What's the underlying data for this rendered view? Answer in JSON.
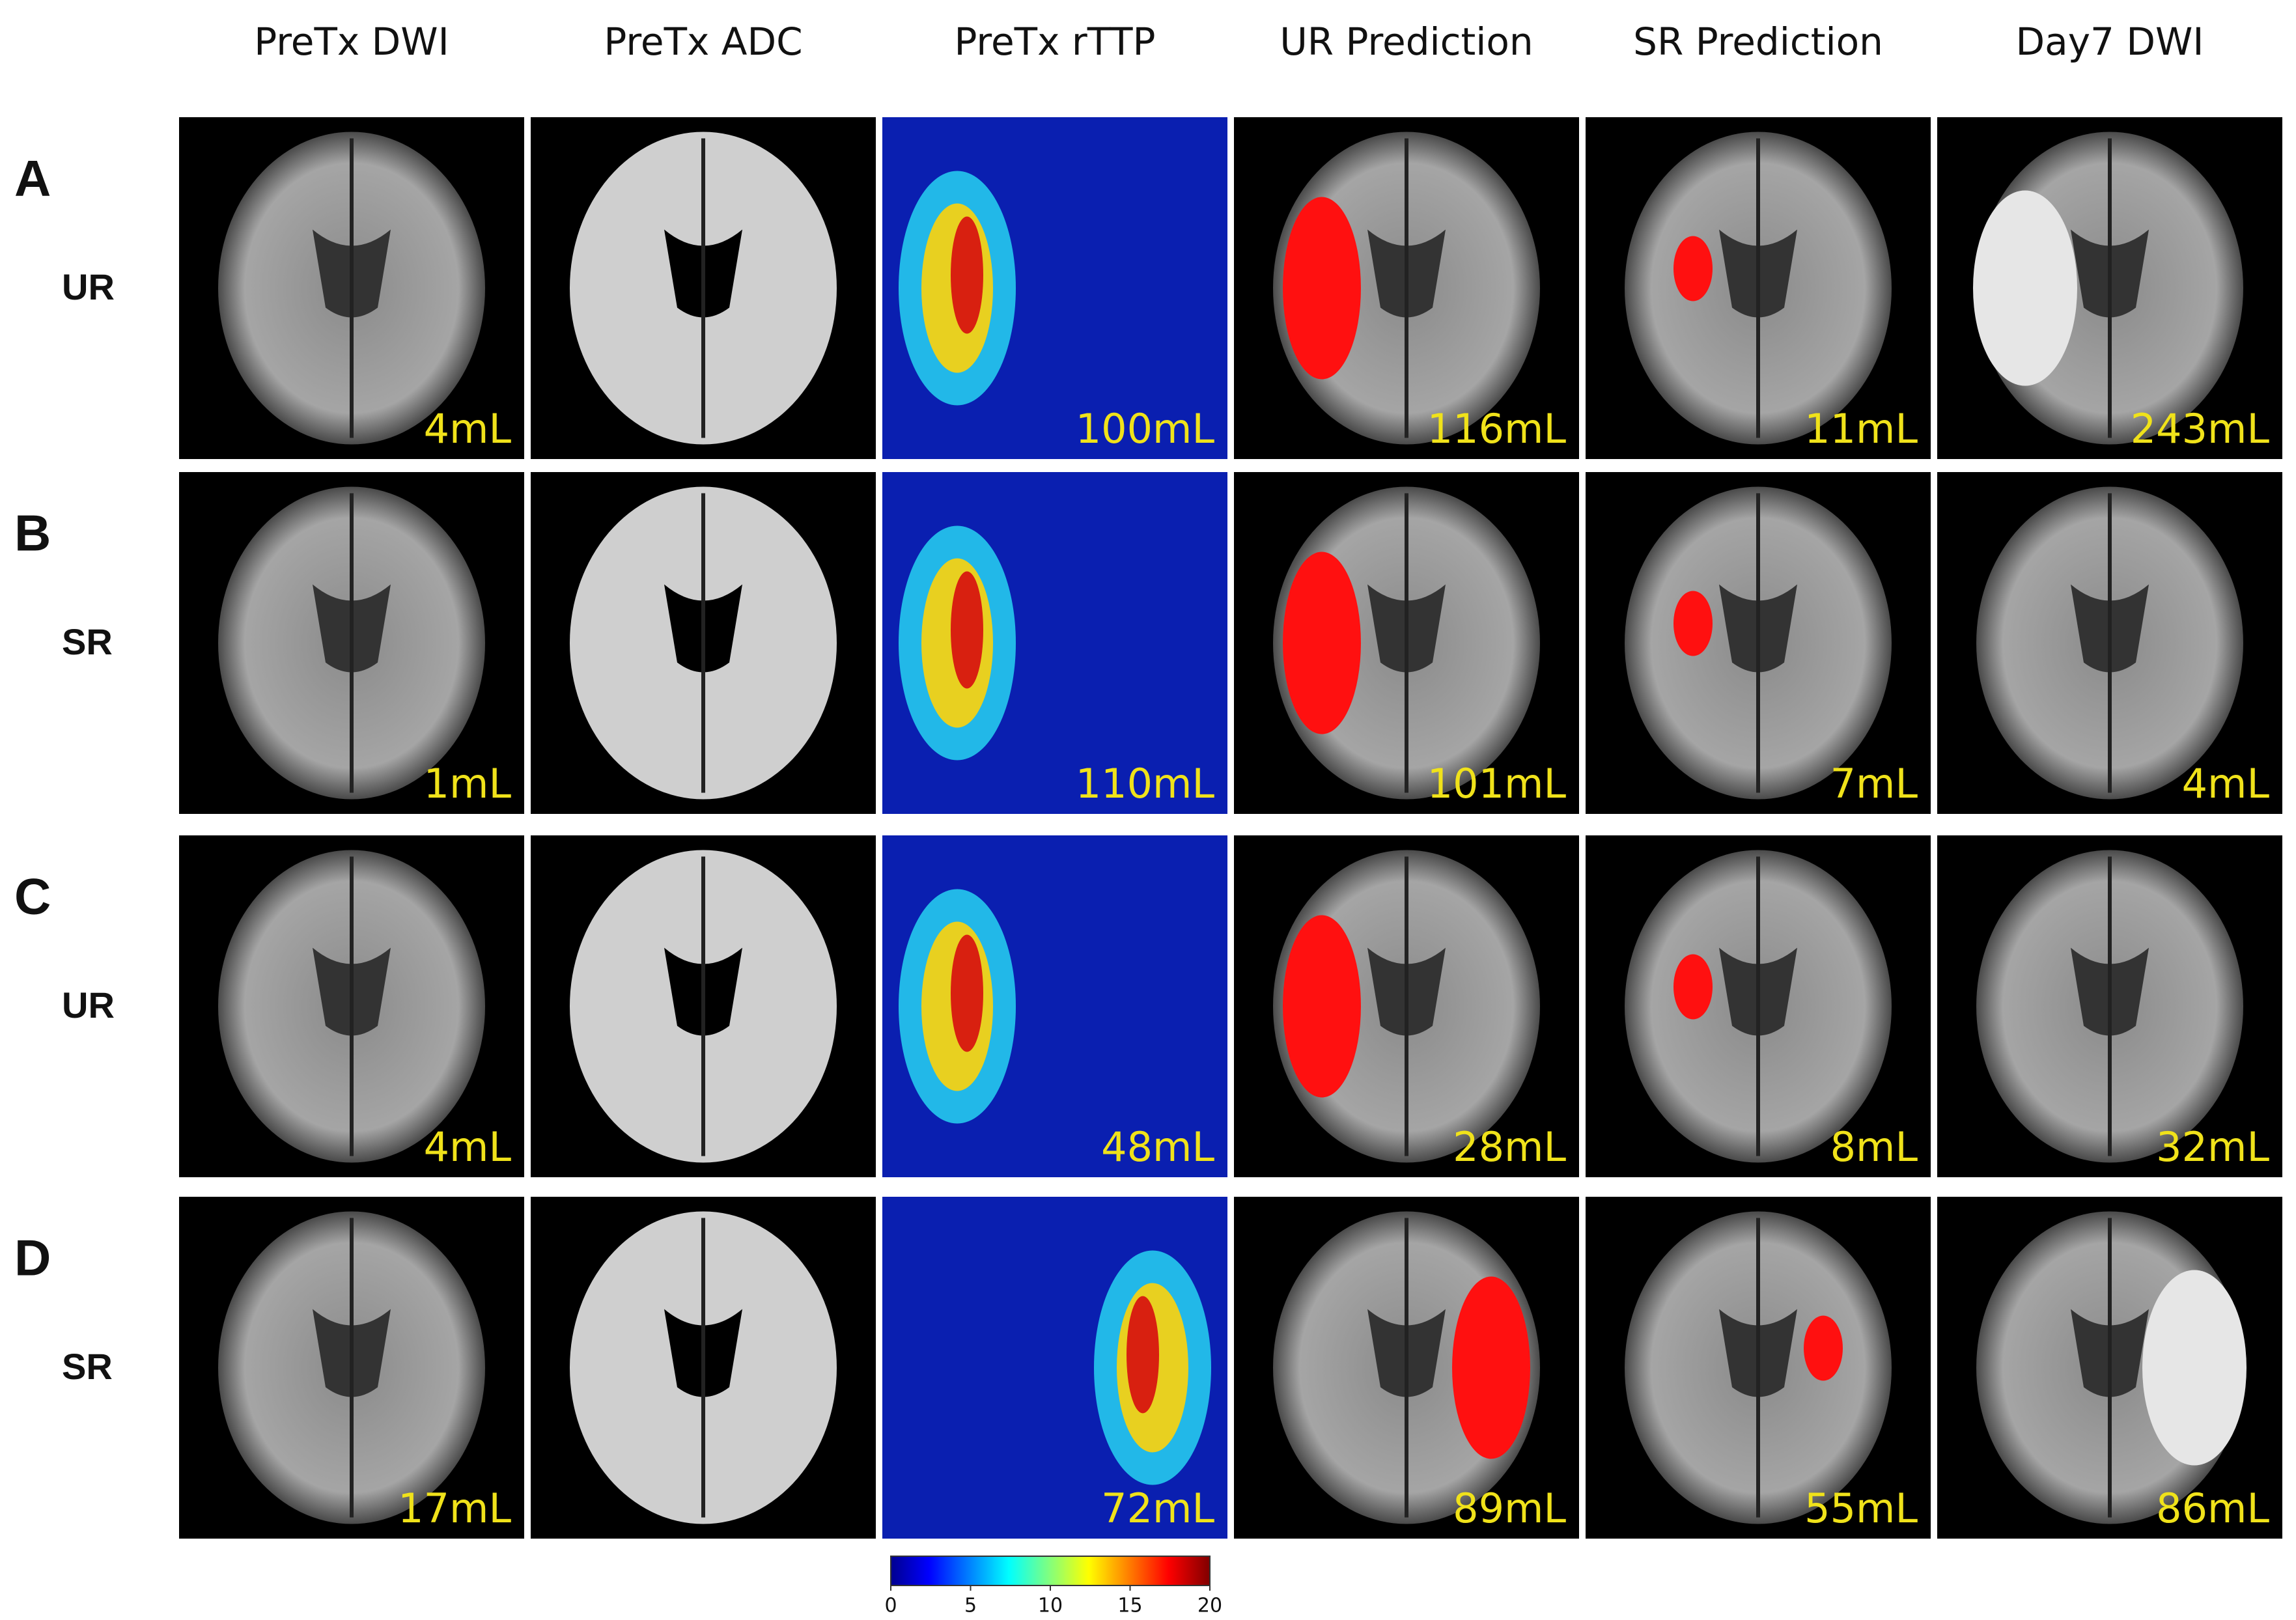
{
  "columns": [
    "PreTx DWI",
    "PreTx ADC",
    "PreTx rTTP",
    "UR Prediction",
    "SR Prediction",
    "Day7 DWI"
  ],
  "rows": [
    {
      "letter": "A",
      "group": "UR",
      "volumes": [
        "4mL",
        "",
        "100mL",
        "116mL",
        "11mL",
        "243mL"
      ]
    },
    {
      "letter": "B",
      "group": "SR",
      "volumes": [
        "1mL",
        "",
        "110mL",
        "101mL",
        "7mL",
        "4mL"
      ]
    },
    {
      "letter": "C",
      "group": "UR",
      "volumes": [
        "4mL",
        "",
        "48mL",
        "28mL",
        "8mL",
        "32mL"
      ]
    },
    {
      "letter": "D",
      "group": "SR",
      "volumes": [
        "17mL",
        "",
        "72mL",
        "89mL",
        "55mL",
        "86mL"
      ]
    }
  ],
  "colorbar": {
    "lim": [
      0,
      20
    ],
    "ticks": [
      0,
      5,
      10,
      15,
      20
    ]
  }
}
